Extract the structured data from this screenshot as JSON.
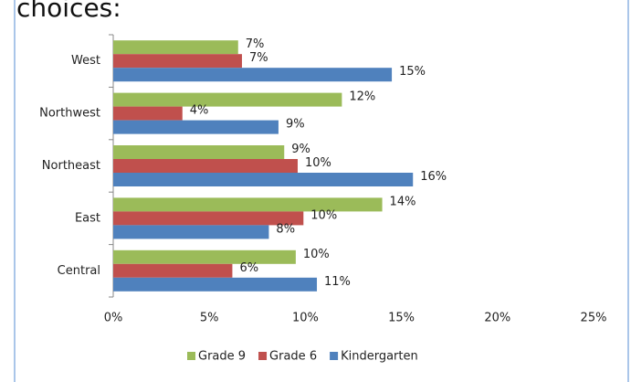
{
  "chart_data": {
    "type": "hbar",
    "title": "choices:",
    "categories": [
      "West",
      "Northwest",
      "Northeast",
      "East",
      "Central"
    ],
    "series": [
      {
        "name": "Grade 9",
        "color": "#9bbb59",
        "values": [
          6.5,
          11.9,
          8.9,
          14.0,
          9.5
        ],
        "value_labels": [
          "7%",
          "12%",
          "9%",
          "14%",
          "10%"
        ]
      },
      {
        "name": "Grade 6",
        "color": "#c0504d",
        "values": [
          6.7,
          3.6,
          9.6,
          9.9,
          6.2
        ],
        "value_labels": [
          "7%",
          "4%",
          "10%",
          "10%",
          "6%"
        ]
      },
      {
        "name": "Kindergarten",
        "color": "#4f81bd",
        "values": [
          14.5,
          8.6,
          15.6,
          8.1,
          10.6
        ],
        "value_labels": [
          "15%",
          "9%",
          "16%",
          "8%",
          "11%"
        ]
      }
    ],
    "xlim": [
      0,
      25
    ],
    "xticks": [
      {
        "value": 0,
        "label": "0%"
      },
      {
        "value": 5,
        "label": "5%"
      },
      {
        "value": 10,
        "label": "10%"
      },
      {
        "value": 15,
        "label": "15%"
      },
      {
        "value": 20,
        "label": "20%"
      },
      {
        "value": 25,
        "label": "25%"
      }
    ],
    "legend": "bottom"
  }
}
